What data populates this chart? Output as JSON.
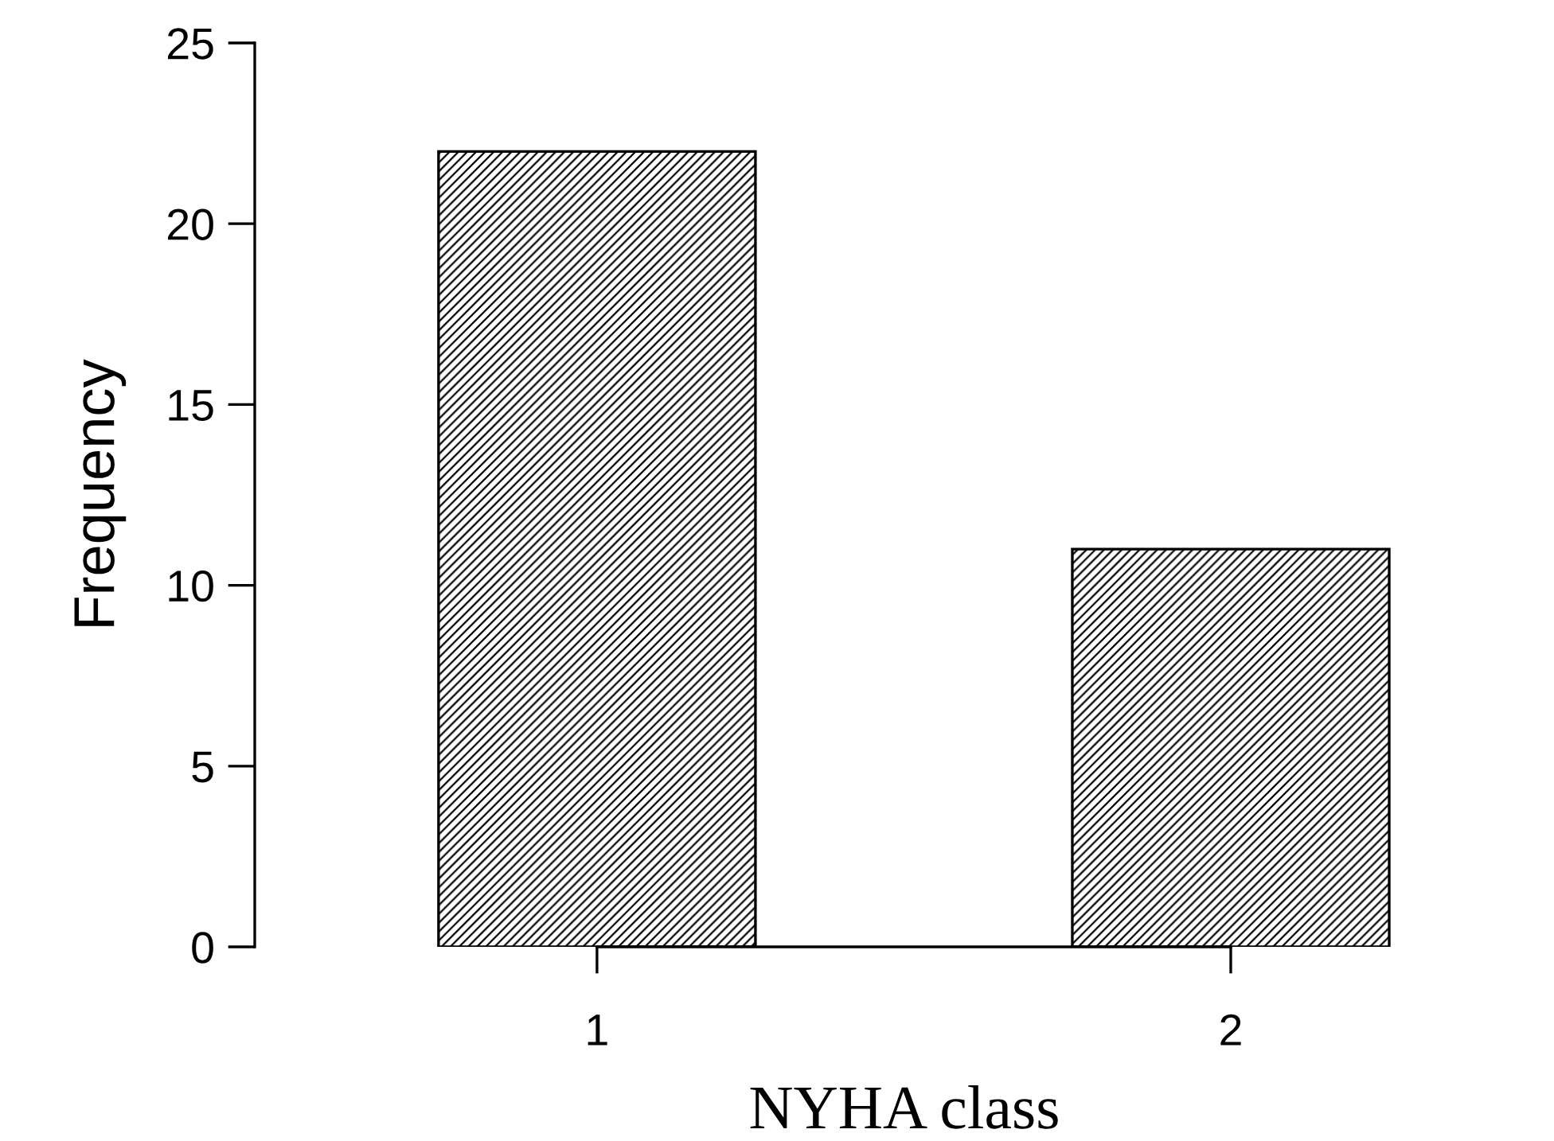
{
  "chart_data": {
    "type": "bar",
    "xlabel": "NYHA class",
    "ylabel": "Frequency",
    "categories": [
      "1",
      "2"
    ],
    "values": [
      22,
      11
    ],
    "color": "#000000",
    "ylim": [
      0,
      25
    ],
    "yticks": [
      0,
      5,
      10,
      15,
      20,
      25
    ],
    "grid": false,
    "legend": false
  }
}
